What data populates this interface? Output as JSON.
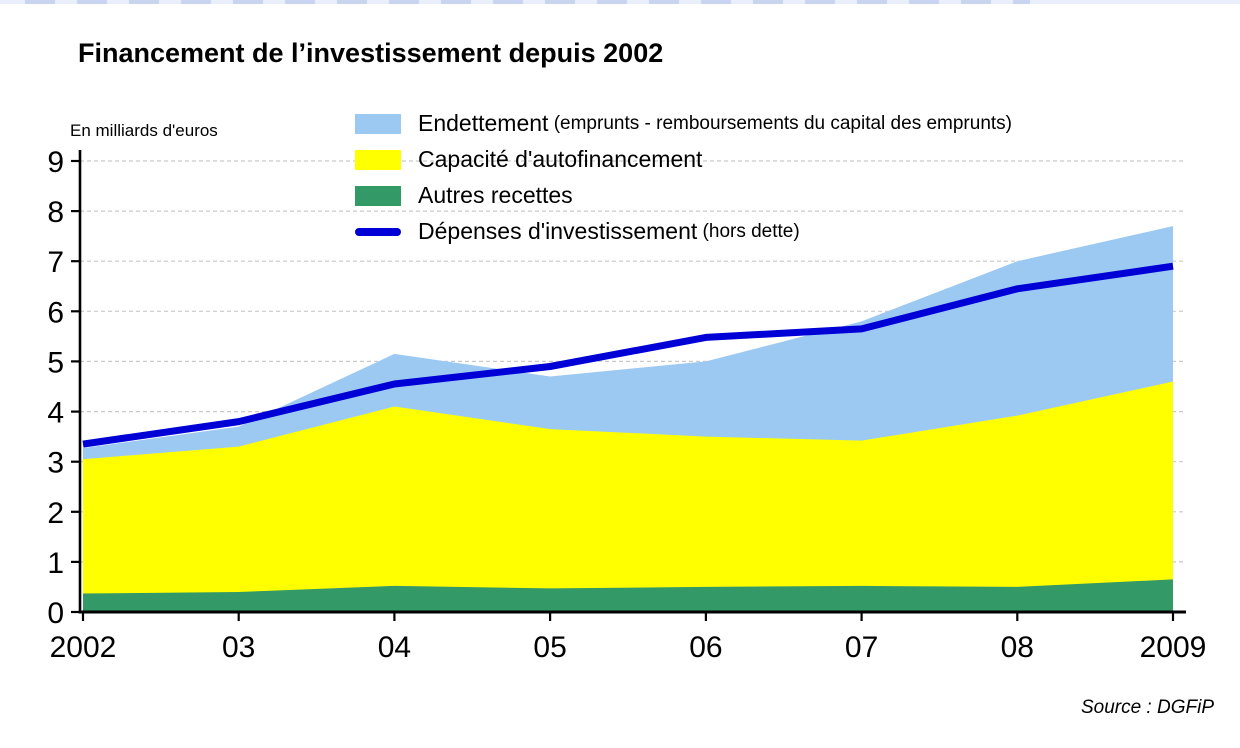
{
  "chart_data": {
    "type": "area",
    "stacked": true,
    "title": "Financement de l’investissement depuis 2002",
    "unit_label": "En milliards d'euros",
    "source": "Source : DGFiP",
    "x": [
      2002,
      2003,
      2004,
      2005,
      2006,
      2007,
      2008,
      2009
    ],
    "x_tick_labels": [
      "2002",
      "03",
      "04",
      "05",
      "06",
      "07",
      "08",
      "2009"
    ],
    "y_ticks": [
      0,
      1,
      2,
      3,
      4,
      5,
      6,
      7,
      8,
      9
    ],
    "ylim": [
      0,
      9
    ],
    "grid": "horizontal-dashed",
    "legend_position": "top-inside",
    "areas": [
      {
        "name": "Autres recettes",
        "color": "#339966",
        "values": [
          0.37,
          0.4,
          0.52,
          0.47,
          0.5,
          0.52,
          0.5,
          0.65
        ]
      },
      {
        "name": "Capacité d'autofinancement",
        "color": "#ffff00",
        "values": [
          2.68,
          2.9,
          3.58,
          3.18,
          3.0,
          2.9,
          3.42,
          3.95
        ]
      },
      {
        "name": "Endettement (emprunts - remboursements du capital des emprunts)",
        "color": "#9cc9f2",
        "values": [
          0.22,
          0.4,
          1.05,
          1.05,
          1.5,
          2.38,
          3.08,
          3.1
        ]
      }
    ],
    "cumulative_tops": {
      "autres_recettes": [
        0.37,
        0.4,
        0.52,
        0.47,
        0.5,
        0.52,
        0.5,
        0.65
      ],
      "capacite_autofinancement": [
        3.05,
        3.3,
        4.1,
        3.65,
        3.5,
        3.42,
        3.92,
        4.6
      ],
      "endettement": [
        3.27,
        3.7,
        5.15,
        4.7,
        5.0,
        5.8,
        7.0,
        7.7
      ]
    },
    "line": {
      "name": "Dépenses d'investissement (hors dette)",
      "color": "#0000d6",
      "values": [
        3.35,
        3.8,
        4.55,
        4.9,
        5.48,
        5.65,
        6.45,
        6.9
      ]
    }
  },
  "legend": {
    "items": [
      {
        "label": "Endettement",
        "note": "(emprunts - remboursements du capital des emprunts)",
        "color": "#9cc9f2",
        "style": "area"
      },
      {
        "label": "Capacité d'autofinancement",
        "note": "",
        "color": "#ffff00",
        "style": "area"
      },
      {
        "label": "Autres recettes",
        "note": "",
        "color": "#339966",
        "style": "area"
      },
      {
        "label": "Dépenses d'investissement",
        "note": "(hors dette)",
        "color": "#0000d6",
        "style": "line"
      }
    ]
  }
}
